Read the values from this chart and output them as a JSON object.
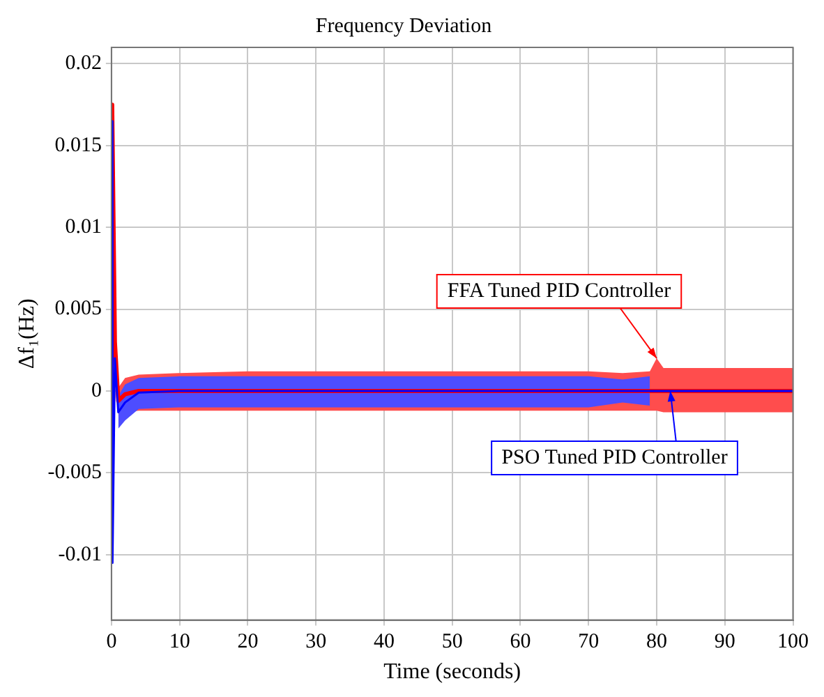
{
  "chart_data": {
    "type": "line",
    "title": "Frequency Deviation",
    "xlabel": "Time (seconds)",
    "ylabel": "Δf₁(Hz)",
    "xlim": [
      0,
      100
    ],
    "xticks": [
      0,
      10,
      20,
      30,
      40,
      50,
      60,
      70,
      80,
      90,
      100
    ],
    "ylim": [
      -0.014,
      0.021
    ],
    "yticks": [
      -0.01,
      -0.005,
      0,
      0.005,
      0.01,
      0.015,
      0.02
    ],
    "grid": true,
    "legend": false,
    "series": [
      {
        "color": "#ff0000",
        "x": [
          0,
          0.1,
          0.5,
          1,
          2,
          4,
          10,
          20,
          30,
          40,
          50,
          60,
          70,
          75,
          79,
          80,
          81,
          85,
          90,
          95,
          100
        ],
        "values": [
          0,
          0.0175,
          0.003,
          -0.0006,
          -0.0002,
          0,
          0,
          0,
          0,
          0,
          0,
          0,
          0,
          0,
          0,
          0,
          0,
          0,
          0,
          0,
          0
        ],
        "lower": [
          null,
          null,
          null,
          -0.0015,
          -0.0013,
          -0.0012,
          -0.0012,
          -0.0012,
          -0.0012,
          -0.0012,
          -0.0012,
          -0.0012,
          -0.0012,
          -0.0012,
          -0.0012,
          -0.0012,
          -0.0013,
          -0.0013,
          -0.0013,
          -0.0013,
          -0.0013
        ],
        "upper": [
          null,
          null,
          null,
          0.0002,
          0.0008,
          0.001,
          0.0011,
          0.0012,
          0.0012,
          0.0012,
          0.0012,
          0.0012,
          0.0012,
          0.0011,
          0.0012,
          0.002,
          0.0014,
          0.0014,
          0.0014,
          0.0014,
          0.0014
        ]
      },
      {
        "color": "#0000ff",
        "x": [
          0,
          0.05,
          0.15,
          0.5,
          1,
          2,
          4,
          10,
          20,
          30,
          40,
          50,
          60,
          70,
          75,
          79,
          79.5,
          85,
          90,
          95,
          100
        ],
        "values": [
          0,
          0.0165,
          -0.0105,
          0.002,
          -0.0013,
          -0.0007,
          -0.0001,
          0,
          0,
          0,
          0,
          0,
          0,
          0,
          0,
          0,
          0,
          0,
          0,
          0,
          0
        ],
        "lower": [
          null,
          null,
          null,
          null,
          -0.0023,
          -0.0018,
          -0.0011,
          -0.001,
          -0.001,
          -0.001,
          -0.001,
          -0.001,
          -0.001,
          -0.001,
          -0.0007,
          -0.0009,
          null,
          null,
          null,
          null,
          null
        ],
        "upper": [
          null,
          null,
          null,
          null,
          -0.0003,
          0.0004,
          0.0008,
          0.0009,
          0.0009,
          0.0009,
          0.0009,
          0.0009,
          0.0009,
          0.0009,
          0.0007,
          0.0009,
          null,
          null,
          null,
          null,
          null
        ]
      }
    ],
    "annotations": [
      {
        "text": "FFA Tuned PID Controller",
        "x": 80,
        "y": 0.002
      },
      {
        "text": "PSO Tuned PID Controller",
        "x": 82,
        "y": 0
      }
    ]
  }
}
